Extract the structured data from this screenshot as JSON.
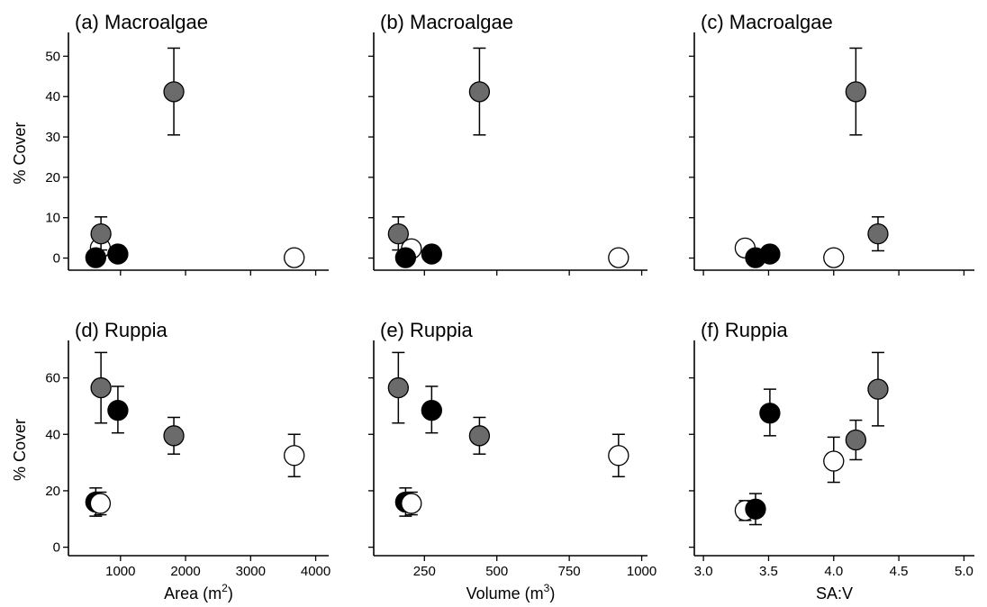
{
  "chart_data": [
    {
      "type": "scatter",
      "title": "(a) Macroalgae",
      "xlabel": "",
      "xlabel_sup": "",
      "ylabel": "% Cover",
      "xlim": [
        200,
        4200
      ],
      "ylim": [
        -3,
        55
      ],
      "xticks": [
        1000,
        2000,
        3000,
        4000
      ],
      "show_xtick_labels": false,
      "yticks": [
        0,
        10,
        20,
        30,
        40,
        50
      ],
      "show_ytick_labels": true,
      "points": [
        {
          "x": 690,
          "y": 2.5,
          "lo": 0.5,
          "hi": 4.5,
          "fill": "white"
        },
        {
          "x": 700,
          "y": 6,
          "lo": 2,
          "hi": 10.2,
          "fill": "gray"
        },
        {
          "x": 620,
          "y": 0.1,
          "lo": 0,
          "hi": 0.3,
          "fill": "black"
        },
        {
          "x": 960,
          "y": 1,
          "lo": 0,
          "hi": 2,
          "fill": "black"
        },
        {
          "x": 1820,
          "y": 41.2,
          "lo": 30.5,
          "hi": 52,
          "fill": "gray"
        },
        {
          "x": 3670,
          "y": 0.1,
          "lo": 0,
          "hi": 0.3,
          "fill": "white"
        }
      ]
    },
    {
      "type": "scatter",
      "title": "(b) Macroalgae",
      "xlabel": "",
      "xlabel_sup": "",
      "ylabel": "",
      "xlim": [
        75,
        1020
      ],
      "ylim": [
        -3,
        55
      ],
      "xticks": [
        250,
        500,
        750,
        1000
      ],
      "show_xtick_labels": false,
      "yticks": [
        0,
        10,
        20,
        30,
        40,
        50
      ],
      "show_ytick_labels": false,
      "points": [
        {
          "x": 160,
          "y": 6,
          "lo": 2,
          "hi": 10.2,
          "fill": "gray"
        },
        {
          "x": 205,
          "y": 2.3,
          "lo": 0.5,
          "hi": 4.2,
          "fill": "white"
        },
        {
          "x": 185,
          "y": 0.1,
          "lo": 0,
          "hi": 0.3,
          "fill": "black"
        },
        {
          "x": 275,
          "y": 1,
          "lo": 0,
          "hi": 2,
          "fill": "black"
        },
        {
          "x": 440,
          "y": 41.2,
          "lo": 30.5,
          "hi": 52,
          "fill": "gray"
        },
        {
          "x": 920,
          "y": 0.1,
          "lo": 0,
          "hi": 0.3,
          "fill": "white"
        }
      ]
    },
    {
      "type": "scatter",
      "title": "(c) Macroalgae",
      "xlabel": "",
      "xlabel_sup": "",
      "ylabel": "",
      "xlim": [
        2.93,
        5.08
      ],
      "ylim": [
        -3,
        55
      ],
      "xticks": [
        3.0,
        3.5,
        4.0,
        4.5,
        5.0
      ],
      "show_xtick_labels": false,
      "yticks": [
        0,
        10,
        20,
        30,
        40,
        50
      ],
      "show_ytick_labels": false,
      "points": [
        {
          "x": 3.32,
          "y": 2.5,
          "lo": 0.5,
          "hi": 4.5,
          "fill": "white"
        },
        {
          "x": 3.4,
          "y": 0.1,
          "lo": 0,
          "hi": 0.3,
          "fill": "black"
        },
        {
          "x": 3.51,
          "y": 1,
          "lo": 0,
          "hi": 2,
          "fill": "black"
        },
        {
          "x": 4.0,
          "y": 0.1,
          "lo": 0,
          "hi": 0.3,
          "fill": "white"
        },
        {
          "x": 4.17,
          "y": 41.2,
          "lo": 30.5,
          "hi": 52,
          "fill": "gray"
        },
        {
          "x": 4.34,
          "y": 6,
          "lo": 1.8,
          "hi": 10.2,
          "fill": "gray"
        }
      ]
    },
    {
      "type": "scatter",
      "title": "(d) Ruppia",
      "xlabel": "Area (m",
      "xlabel_sup": "2",
      "ylabel": "% Cover",
      "xlim": [
        200,
        4200
      ],
      "ylim": [
        -3,
        72
      ],
      "xticks": [
        1000,
        2000,
        3000,
        4000
      ],
      "show_xtick_labels": true,
      "yticks": [
        0,
        20,
        40,
        60
      ],
      "show_ytick_labels": true,
      "points": [
        {
          "x": 700,
          "y": 56.5,
          "lo": 44,
          "hi": 69,
          "fill": "gray"
        },
        {
          "x": 960,
          "y": 48.5,
          "lo": 40.5,
          "hi": 57,
          "fill": "black"
        },
        {
          "x": 1820,
          "y": 39.5,
          "lo": 33,
          "hi": 46,
          "fill": "gray"
        },
        {
          "x": 3670,
          "y": 32.5,
          "lo": 25,
          "hi": 40,
          "fill": "white"
        },
        {
          "x": 620,
          "y": 16,
          "lo": 11,
          "hi": 21,
          "fill": "black"
        },
        {
          "x": 690,
          "y": 15.5,
          "lo": 11.5,
          "hi": 19.5,
          "fill": "white"
        }
      ]
    },
    {
      "type": "scatter",
      "title": "(e) Ruppia",
      "xlabel": "Volume (m",
      "xlabel_sup": "3",
      "ylabel": "",
      "xlim": [
        75,
        1020
      ],
      "ylim": [
        -3,
        72
      ],
      "xticks": [
        250,
        500,
        750,
        1000
      ],
      "show_xtick_labels": true,
      "yticks": [
        0,
        20,
        40,
        60
      ],
      "show_ytick_labels": false,
      "points": [
        {
          "x": 160,
          "y": 56.5,
          "lo": 44,
          "hi": 69,
          "fill": "gray"
        },
        {
          "x": 275,
          "y": 48.5,
          "lo": 40.5,
          "hi": 57,
          "fill": "black"
        },
        {
          "x": 440,
          "y": 39.5,
          "lo": 33,
          "hi": 46,
          "fill": "gray"
        },
        {
          "x": 920,
          "y": 32.5,
          "lo": 25,
          "hi": 40,
          "fill": "white"
        },
        {
          "x": 185,
          "y": 16,
          "lo": 11,
          "hi": 21,
          "fill": "black"
        },
        {
          "x": 205,
          "y": 15.5,
          "lo": 11.5,
          "hi": 19.5,
          "fill": "white"
        }
      ]
    },
    {
      "type": "scatter",
      "title": "(f) Ruppia",
      "xlabel": "SA:V",
      "xlabel_sup": "",
      "ylabel": "",
      "xlim": [
        2.93,
        5.08
      ],
      "ylim": [
        -3,
        72
      ],
      "xticks": [
        3.0,
        3.5,
        4.0,
        4.5,
        5.0
      ],
      "show_xtick_labels": true,
      "yticks": [
        0,
        20,
        40,
        60
      ],
      "show_ytick_labels": false,
      "points": [
        {
          "x": 3.32,
          "y": 13,
          "lo": 9.5,
          "hi": 16.5,
          "fill": "white"
        },
        {
          "x": 3.4,
          "y": 13.5,
          "lo": 8,
          "hi": 19,
          "fill": "black"
        },
        {
          "x": 3.51,
          "y": 47.5,
          "lo": 39.5,
          "hi": 56,
          "fill": "black"
        },
        {
          "x": 4.0,
          "y": 30.5,
          "lo": 23,
          "hi": 39,
          "fill": "white"
        },
        {
          "x": 4.17,
          "y": 38,
          "lo": 31,
          "hi": 45,
          "fill": "gray"
        },
        {
          "x": 4.34,
          "y": 56,
          "lo": 43,
          "hi": 69,
          "fill": "gray"
        }
      ]
    }
  ],
  "colors": {
    "black": "#000000",
    "gray": "#6b6b6b",
    "white": "#ffffff"
  }
}
